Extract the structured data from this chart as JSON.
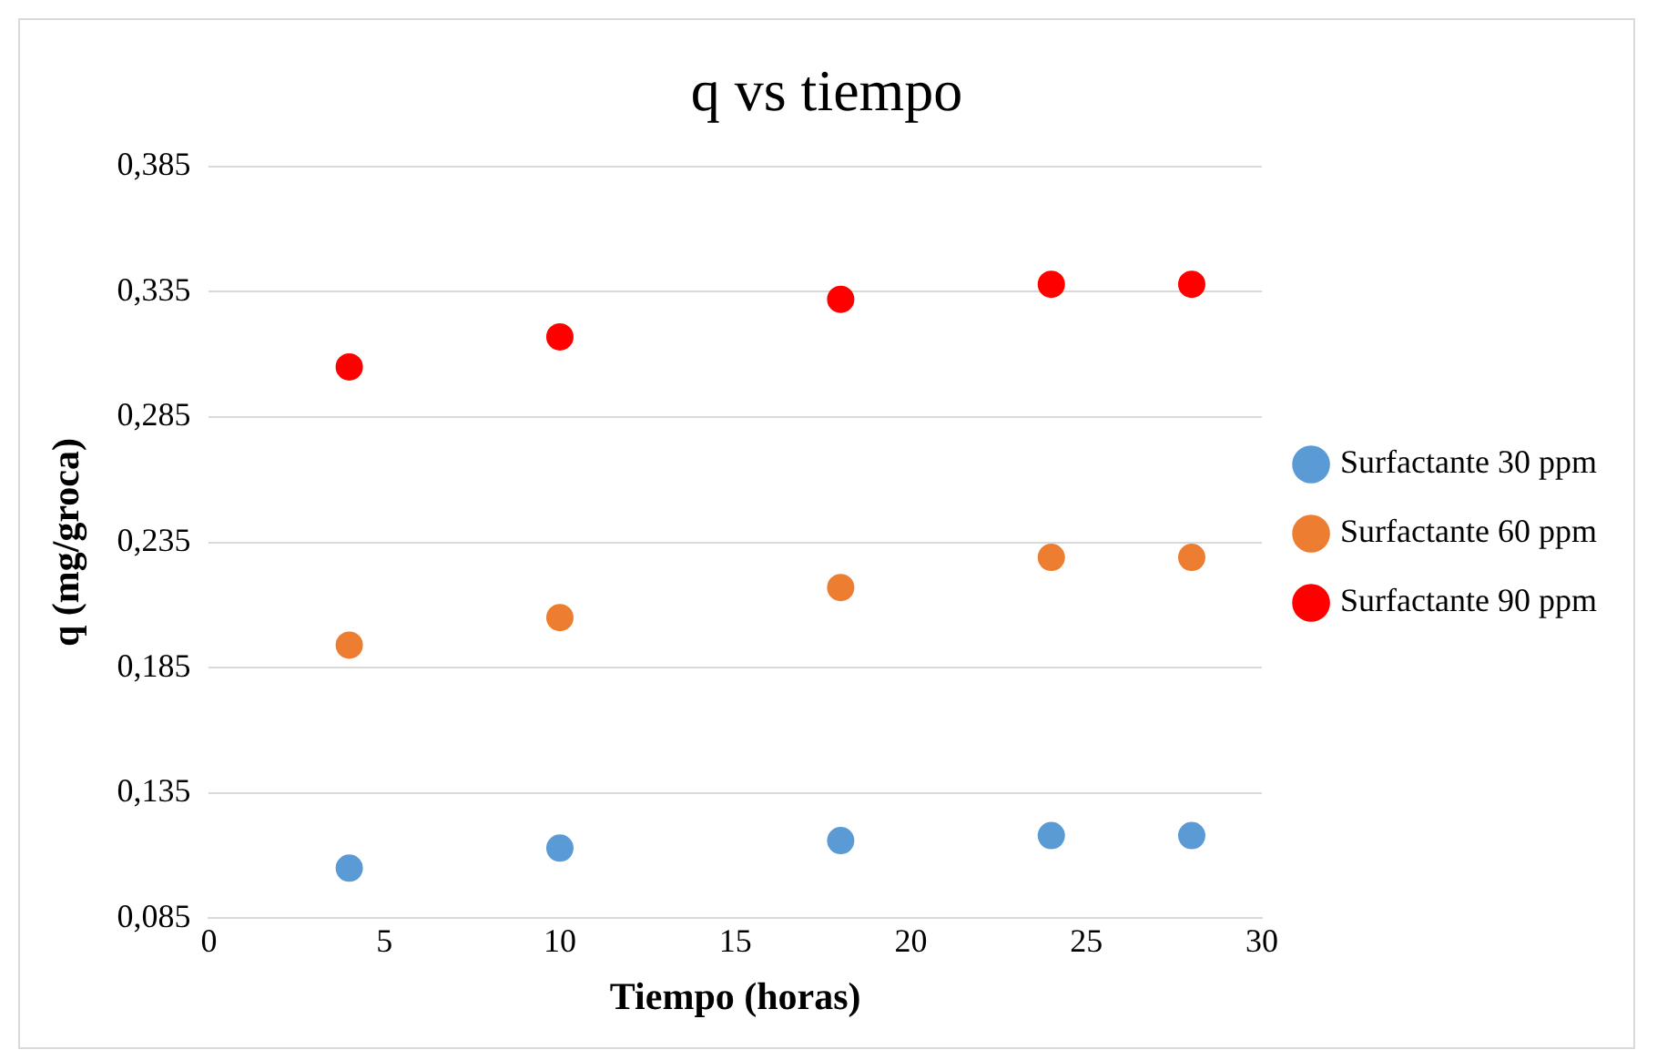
{
  "chart_data": {
    "type": "scatter",
    "title": "q vs tiempo",
    "xlabel": "Tiempo (horas)",
    "ylabel": "q (mg/groca)",
    "x": [
      4,
      10,
      18,
      24,
      28
    ],
    "series": [
      {
        "name": "Surfactante 30 ppm",
        "color": "#5b9bd5",
        "values": [
          0.105,
          0.113,
          0.116,
          0.118,
          0.118
        ]
      },
      {
        "name": "Surfactante 60 ppm",
        "color": "#ed7d31",
        "values": [
          0.194,
          0.205,
          0.217,
          0.229,
          0.229
        ]
      },
      {
        "name": "Surfactante 90 ppm",
        "color": "#ff0000",
        "values": [
          0.305,
          0.317,
          0.332,
          0.338,
          0.338
        ]
      }
    ],
    "xlim": [
      0,
      30
    ],
    "xticks": [
      0,
      5,
      10,
      15,
      20,
      25,
      30
    ],
    "ylim": [
      0.085,
      0.385
    ],
    "yticks": [
      {
        "value": 0.085,
        "label": "0,085"
      },
      {
        "value": 0.135,
        "label": "0,135"
      },
      {
        "value": 0.185,
        "label": "0,185"
      },
      {
        "value": 0.235,
        "label": "0,235"
      },
      {
        "value": 0.285,
        "label": "0,285"
      },
      {
        "value": 0.335,
        "label": "0,335"
      },
      {
        "value": 0.385,
        "label": "0,385"
      }
    ],
    "grid": "y",
    "legend": "right",
    "marker": "circle"
  }
}
